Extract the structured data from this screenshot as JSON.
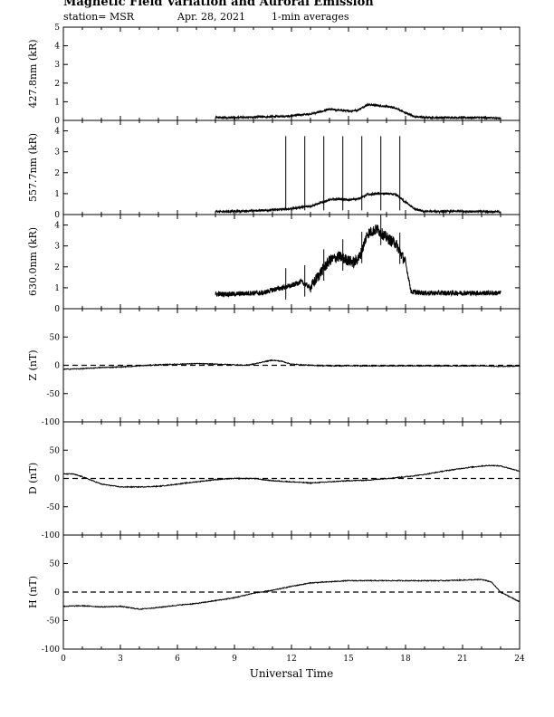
{
  "header": {
    "title": "Magnetic Field Variation and Auroral Emission",
    "station": "station= MSR",
    "date": "Apr. 28, 2021",
    "averaging": "1-min averages"
  },
  "chart_data": [
    {
      "type": "line",
      "panel": "427.8nm",
      "ylabel": "427.8nm (kR)",
      "xlim": [
        0,
        24
      ],
      "ylim": [
        0,
        5
      ],
      "yticks": [
        0,
        1,
        2,
        3,
        4,
        5
      ],
      "data_range": [
        8,
        23
      ],
      "series": [
        {
          "x": [
            8,
            9,
            10,
            11,
            11.5,
            12,
            12.5,
            13,
            13.5,
            14,
            14.5,
            15,
            15.5,
            16,
            16.5,
            17,
            17.5,
            18,
            18.5,
            19,
            20,
            21,
            22,
            23
          ],
          "values": [
            0.15,
            0.15,
            0.18,
            0.2,
            0.22,
            0.25,
            0.3,
            0.35,
            0.45,
            0.6,
            0.55,
            0.5,
            0.55,
            0.85,
            0.8,
            0.75,
            0.65,
            0.4,
            0.2,
            0.15,
            0.15,
            0.15,
            0.15,
            0.12
          ]
        }
      ]
    },
    {
      "type": "line",
      "panel": "557.7nm",
      "ylabel": "557.7nm (kR)",
      "xlim": [
        0,
        24
      ],
      "ylim": [
        0,
        4.5
      ],
      "yticks": [
        0,
        1,
        2,
        3,
        4
      ],
      "data_range": [
        8,
        23
      ],
      "spikes": [
        11.7,
        12.7,
        13.7,
        14.7,
        15.7,
        16.7,
        17.7
      ],
      "series": [
        {
          "x": [
            8,
            9,
            10,
            11,
            11.5,
            12,
            12.5,
            13,
            13.5,
            14,
            14.5,
            15,
            15.5,
            16,
            16.5,
            17,
            17.5,
            18,
            18.5,
            19,
            20,
            21,
            22,
            23
          ],
          "values": [
            0.15,
            0.15,
            0.18,
            0.22,
            0.25,
            0.28,
            0.35,
            0.4,
            0.55,
            0.7,
            0.75,
            0.7,
            0.75,
            0.95,
            1.0,
            1.0,
            0.95,
            0.6,
            0.25,
            0.15,
            0.15,
            0.15,
            0.15,
            0.12
          ]
        }
      ]
    },
    {
      "type": "line",
      "panel": "630.0nm",
      "ylabel": "630.0nm (kR)",
      "xlim": [
        0,
        24
      ],
      "ylim": [
        0,
        4.5
      ],
      "yticks": [
        0,
        1,
        2,
        3,
        4
      ],
      "data_range": [
        8,
        23
      ],
      "spikes": [
        11.7,
        12.7,
        13.7,
        14.7,
        15.7,
        16.7,
        17.7
      ],
      "series": [
        {
          "x": [
            8,
            9,
            10,
            10.5,
            11,
            11.5,
            12,
            12.5,
            13,
            13.5,
            14,
            14.5,
            15,
            15.3,
            15.6,
            16,
            16.5,
            17,
            17.5,
            18,
            18.3,
            19,
            20,
            21,
            22,
            23
          ],
          "values": [
            0.7,
            0.7,
            0.75,
            0.75,
            0.9,
            1.0,
            1.1,
            1.3,
            1.0,
            1.7,
            2.3,
            2.5,
            2.3,
            2.2,
            2.5,
            3.6,
            3.8,
            3.4,
            3.1,
            2.2,
            0.8,
            0.75,
            0.75,
            0.75,
            0.75,
            0.75
          ]
        }
      ]
    },
    {
      "type": "line",
      "panel": "Z",
      "ylabel": "Z (nT)",
      "xlim": [
        0,
        24
      ],
      "ylim": [
        -100,
        100
      ],
      "yticks": [
        -100,
        -50,
        0,
        50
      ],
      "zero_line": true,
      "series": [
        {
          "x": [
            0,
            1,
            2,
            3,
            4,
            5,
            6,
            7,
            8,
            9,
            9.5,
            10,
            10.5,
            11,
            11.5,
            12,
            13,
            14,
            15,
            16,
            17,
            18,
            19,
            20,
            21,
            22,
            23,
            24
          ],
          "values": [
            -7,
            -6,
            -4,
            -3,
            -1,
            1,
            2,
            3,
            2,
            1,
            0,
            2,
            6,
            9,
            7,
            2,
            0,
            -1,
            -1,
            -1,
            -1,
            -1,
            -1,
            -1,
            -1,
            -1,
            -2,
            -1
          ]
        }
      ]
    },
    {
      "type": "line",
      "panel": "D",
      "ylabel": "D (nT)",
      "xlim": [
        0,
        24
      ],
      "ylim": [
        -100,
        100
      ],
      "yticks": [
        -100,
        -50,
        0,
        50
      ],
      "zero_line": true,
      "series": [
        {
          "x": [
            0,
            0.5,
            1,
            2,
            3,
            4,
            5,
            6,
            7,
            8,
            9,
            10,
            11,
            12,
            13,
            14,
            15,
            16,
            17,
            18,
            19,
            20,
            21,
            22,
            22.5,
            23,
            24
          ],
          "values": [
            8,
            8,
            3,
            -10,
            -15,
            -15,
            -14,
            -10,
            -6,
            -2,
            0,
            0,
            -4,
            -6,
            -8,
            -6,
            -4,
            -3,
            0,
            3,
            7,
            13,
            18,
            22,
            23,
            22,
            13
          ]
        }
      ]
    },
    {
      "type": "line",
      "panel": "H",
      "ylabel": "H (nT)",
      "xlim": [
        0,
        24
      ],
      "ylim": [
        -100,
        100
      ],
      "yticks": [
        -100,
        -50,
        0,
        50
      ],
      "zero_line": true,
      "xticks": [
        0,
        3,
        6,
        9,
        12,
        15,
        18,
        21,
        24
      ],
      "xlabel": "Universal Time",
      "series": [
        {
          "x": [
            0,
            1,
            2,
            3,
            4,
            5,
            6,
            7,
            8,
            9,
            10,
            11,
            12,
            13,
            14,
            15,
            16,
            17,
            18,
            19,
            20,
            21,
            22,
            22.5,
            23,
            24
          ],
          "values": [
            -25,
            -24,
            -26,
            -25,
            -30,
            -27,
            -23,
            -20,
            -15,
            -10,
            -2,
            3,
            10,
            16,
            18,
            20,
            20,
            20,
            20,
            20,
            20,
            21,
            22,
            18,
            0,
            -17
          ]
        }
      ]
    }
  ]
}
